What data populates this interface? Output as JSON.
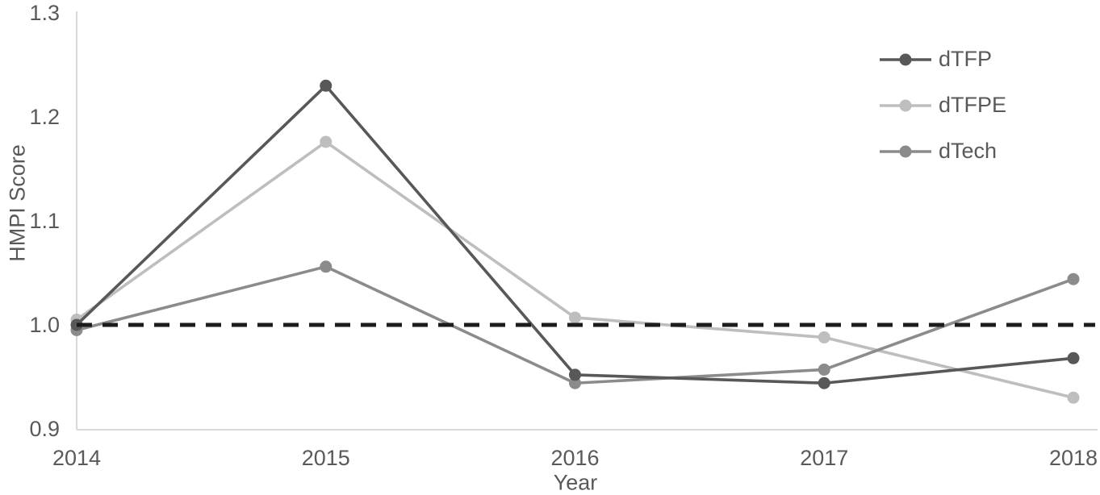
{
  "chart_data": {
    "type": "line",
    "title": "",
    "xlabel": "Year",
    "ylabel": "HMPI Score",
    "x": [
      "2014",
      "2015",
      "2016",
      "2017",
      "2018"
    ],
    "ylim": [
      0.9,
      1.3
    ],
    "yticks": [
      1.3,
      1.2,
      1.1,
      1.0,
      0.9
    ],
    "ytick_labels": [
      "1.3",
      "1.2",
      "1.1",
      "1.0",
      "0.9"
    ],
    "grid": false,
    "legend_position": "top-right",
    "baseline": {
      "value": 1.0,
      "style": "dashed",
      "color": "#1c1c1c"
    },
    "series": [
      {
        "name": "dTFP",
        "color": "#585858",
        "values": [
          1.0,
          1.23,
          0.952,
          0.944,
          0.968
        ]
      },
      {
        "name": "dTFPE",
        "color": "#bebebe",
        "values": [
          1.005,
          1.176,
          1.007,
          0.988,
          0.93
        ]
      },
      {
        "name": "dTech",
        "color": "#8b8b8b",
        "values": [
          0.995,
          1.056,
          0.944,
          0.957,
          1.044
        ]
      }
    ],
    "colors": {
      "axis_line": "#d9d9d9",
      "tick_text": "#595959",
      "background": "#ffffff"
    }
  }
}
